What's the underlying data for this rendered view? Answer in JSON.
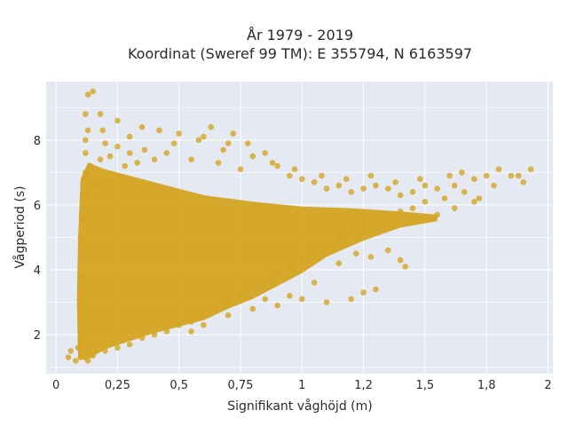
{
  "chart_data": {
    "type": "scatter",
    "title": "År 1979 - 2019",
    "subtitle": "Koordinat (Sweref 99 TM): E 355794, N 6163597",
    "xlabel": "Signifikant våghöjd (m)",
    "ylabel": "Vågperiod (s)",
    "xlim": [
      -0.04,
      2.02
    ],
    "ylim": [
      0.8,
      9.8
    ],
    "xticks": [
      0,
      0.25,
      0.5,
      0.75,
      1,
      1.25,
      1.5,
      1.75,
      2
    ],
    "xtick_labels": [
      "0",
      "0,25",
      "0,5",
      "0,75",
      "1",
      "1,2",
      "1,5",
      "1,8",
      "2"
    ],
    "yticks": [
      2,
      4,
      6,
      8
    ],
    "ytick_labels": [
      "2",
      "4",
      "6",
      "8"
    ],
    "grid": true,
    "marker_color": "#D4A421",
    "plot_background": "#E5E9F2",
    "series": [
      {
        "points": [
          [
            0.05,
            1.3
          ],
          [
            0.06,
            1.5
          ],
          [
            0.08,
            1.2
          ],
          [
            0.09,
            1.6
          ],
          [
            0.1,
            1.3
          ],
          [
            0.1,
            1.8
          ],
          [
            0.11,
            2.1
          ],
          [
            0.1,
            2.6
          ],
          [
            0.11,
            3.2
          ],
          [
            0.1,
            3.8
          ],
          [
            0.11,
            4.4
          ],
          [
            0.1,
            5.0
          ],
          [
            0.11,
            5.6
          ],
          [
            0.12,
            6.3
          ],
          [
            0.12,
            7.0
          ],
          [
            0.12,
            7.6
          ],
          [
            0.13,
            8.3
          ],
          [
            0.12,
            8.8
          ],
          [
            0.13,
            9.4
          ],
          [
            0.15,
            9.5
          ],
          [
            0.18,
            8.8
          ],
          [
            0.19,
            8.3
          ],
          [
            0.12,
            8.0
          ],
          [
            0.14,
            7.2
          ],
          [
            0.16,
            6.6
          ],
          [
            0.18,
            7.4
          ],
          [
            0.2,
            7.9
          ],
          [
            0.22,
            7.5
          ],
          [
            0.25,
            7.8
          ],
          [
            0.28,
            7.2
          ],
          [
            0.3,
            7.6
          ],
          [
            0.33,
            7.3
          ],
          [
            0.36,
            7.7
          ],
          [
            0.4,
            7.4
          ],
          [
            0.45,
            7.6
          ],
          [
            0.5,
            8.2
          ],
          [
            0.55,
            7.4
          ],
          [
            0.6,
            8.1
          ],
          [
            0.63,
            8.4
          ],
          [
            0.66,
            7.3
          ],
          [
            0.7,
            7.9
          ],
          [
            0.75,
            7.1
          ],
          [
            0.8,
            7.5
          ],
          [
            0.85,
            7.6
          ],
          [
            0.9,
            7.2
          ],
          [
            0.95,
            6.9
          ],
          [
            1.0,
            6.8
          ],
          [
            1.05,
            6.7
          ],
          [
            1.1,
            6.5
          ],
          [
            1.15,
            6.6
          ],
          [
            1.2,
            6.4
          ],
          [
            1.25,
            6.5
          ],
          [
            1.3,
            6.6
          ],
          [
            1.35,
            6.5
          ],
          [
            1.4,
            6.3
          ],
          [
            1.45,
            6.4
          ],
          [
            1.5,
            6.6
          ],
          [
            1.55,
            6.5
          ],
          [
            1.6,
            6.9
          ],
          [
            1.65,
            7.0
          ],
          [
            1.7,
            6.8
          ],
          [
            1.75,
            6.9
          ],
          [
            1.8,
            7.1
          ],
          [
            1.85,
            6.9
          ],
          [
            1.9,
            6.7
          ],
          [
            1.93,
            7.1
          ],
          [
            1.72,
            6.2
          ],
          [
            1.66,
            6.4
          ],
          [
            1.58,
            6.2
          ],
          [
            1.5,
            6.1
          ],
          [
            1.45,
            5.9
          ],
          [
            1.4,
            5.8
          ],
          [
            1.35,
            5.6
          ],
          [
            1.3,
            5.5
          ],
          [
            1.25,
            5.4
          ],
          [
            1.2,
            5.2
          ],
          [
            1.15,
            5.0
          ],
          [
            1.1,
            4.7
          ],
          [
            1.05,
            4.5
          ],
          [
            1.0,
            4.3
          ],
          [
            0.95,
            4.1
          ],
          [
            0.9,
            3.9
          ],
          [
            0.85,
            3.7
          ],
          [
            0.8,
            3.5
          ],
          [
            0.75,
            3.2
          ],
          [
            0.7,
            3.0
          ],
          [
            0.65,
            2.8
          ],
          [
            0.6,
            2.6
          ],
          [
            0.55,
            2.4
          ],
          [
            0.5,
            2.3
          ],
          [
            0.45,
            2.1
          ],
          [
            0.4,
            2.0
          ],
          [
            0.35,
            1.9
          ],
          [
            0.3,
            1.7
          ],
          [
            0.25,
            1.6
          ],
          [
            0.2,
            1.5
          ],
          [
            0.15,
            1.35
          ],
          [
            0.13,
            1.2
          ],
          [
            1.0,
            3.1
          ],
          [
            1.1,
            3.0
          ],
          [
            1.2,
            3.1
          ],
          [
            1.25,
            3.3
          ],
          [
            1.3,
            3.4
          ],
          [
            1.4,
            4.3
          ],
          [
            1.42,
            4.1
          ],
          [
            1.15,
            4.2
          ],
          [
            1.22,
            4.5
          ],
          [
            0.85,
            3.1
          ],
          [
            0.9,
            2.9
          ],
          [
            0.8,
            2.8
          ],
          [
            0.7,
            2.6
          ],
          [
            0.6,
            2.3
          ],
          [
            0.55,
            2.1
          ],
          [
            0.95,
            3.2
          ],
          [
            1.05,
            3.6
          ],
          [
            1.28,
            4.4
          ],
          [
            1.35,
            4.6
          ],
          [
            1.55,
            5.7
          ],
          [
            1.62,
            5.9
          ],
          [
            1.7,
            6.1
          ],
          [
            0.25,
            8.6
          ],
          [
            0.3,
            8.1
          ],
          [
            0.35,
            8.4
          ],
          [
            0.42,
            8.3
          ],
          [
            0.48,
            7.9
          ],
          [
            0.58,
            8.0
          ],
          [
            0.68,
            7.7
          ],
          [
            0.72,
            8.2
          ],
          [
            0.78,
            7.9
          ],
          [
            0.88,
            7.3
          ],
          [
            0.97,
            7.1
          ],
          [
            1.08,
            6.9
          ],
          [
            1.18,
            6.8
          ],
          [
            1.28,
            6.9
          ],
          [
            1.38,
            6.7
          ],
          [
            1.48,
            6.8
          ],
          [
            1.62,
            6.6
          ],
          [
            1.78,
            6.6
          ],
          [
            1.88,
            6.9
          ]
        ]
      }
    ]
  }
}
